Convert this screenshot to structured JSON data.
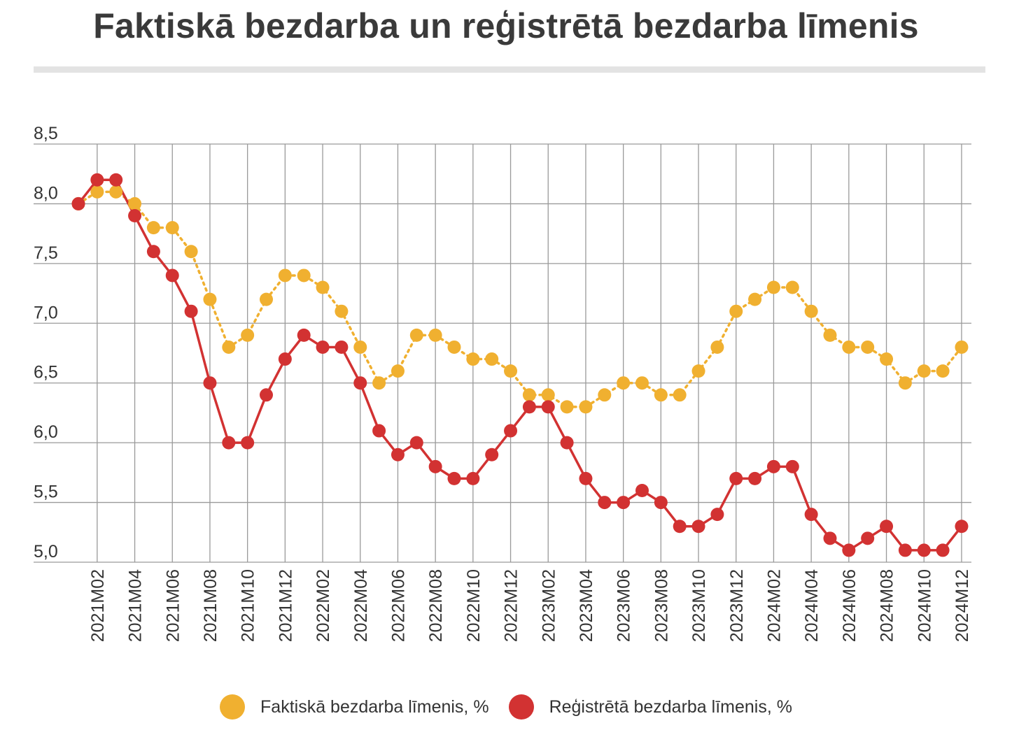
{
  "title": "Faktiskā bezdarba un reģistrētā bezdarba līmenis",
  "chart_data": {
    "type": "line",
    "ylim": [
      5.0,
      8.5
    ],
    "yticks": [
      "5,0",
      "5,5",
      "6,0",
      "6,5",
      "7,0",
      "7,5",
      "8,0",
      "8,5"
    ],
    "ytick_values": [
      5.0,
      5.5,
      6.0,
      6.5,
      7.0,
      7.5,
      8.0,
      8.5
    ],
    "x": [
      "2021M01",
      "2021M02",
      "2021M03",
      "2021M04",
      "2021M05",
      "2021M06",
      "2021M07",
      "2021M08",
      "2021M09",
      "2021M10",
      "2021M11",
      "2021M12",
      "2022M01",
      "2022M02",
      "2022M03",
      "2022M04",
      "2022M05",
      "2022M06",
      "2022M07",
      "2022M08",
      "2022M09",
      "2022M10",
      "2022M11",
      "2022M12",
      "2023M01",
      "2023M02",
      "2023M03",
      "2023M04",
      "2023M05",
      "2023M06",
      "2023M07",
      "2023M08",
      "2023M09",
      "2023M10",
      "2023M11",
      "2023M12",
      "2024M01",
      "2024M02",
      "2024M03",
      "2024M04",
      "2024M05",
      "2024M06",
      "2024M07",
      "2024M08",
      "2024M09",
      "2024M10",
      "2024M11",
      "2024M12"
    ],
    "xtick_labels": [
      "2021M02",
      "2021M04",
      "2021M06",
      "2021M08",
      "2021M10",
      "2021M12",
      "2022M02",
      "2022M04",
      "2022M06",
      "2022M08",
      "2022M10",
      "2022M12",
      "2023M02",
      "2023M04",
      "2023M06",
      "2023M08",
      "2023M10",
      "2023M12",
      "2024M02",
      "2024M04",
      "2024M06",
      "2024M08",
      "2024M10",
      "2024M12"
    ],
    "grid": true,
    "legend_position": "bottom",
    "series": [
      {
        "name": "Faktiskā bezdarba līmenis, %",
        "color": "#f0b030",
        "values": [
          8.0,
          8.1,
          8.1,
          8.0,
          7.8,
          7.8,
          7.6,
          7.2,
          6.8,
          6.9,
          7.2,
          7.4,
          7.4,
          7.3,
          7.1,
          6.8,
          6.5,
          6.6,
          6.9,
          6.9,
          6.8,
          6.7,
          6.7,
          6.6,
          6.4,
          6.4,
          6.3,
          6.3,
          6.4,
          6.5,
          6.5,
          6.4,
          6.4,
          6.6,
          6.8,
          7.1,
          7.2,
          7.3,
          7.3,
          7.1,
          6.9,
          6.8,
          6.8,
          6.7,
          6.5,
          6.6,
          6.6,
          6.8
        ]
      },
      {
        "name": "Reģistrētā bezdarba līmenis, %",
        "color": "#d23232",
        "values": [
          8.0,
          8.2,
          8.2,
          7.9,
          7.6,
          7.4,
          7.1,
          6.5,
          6.0,
          6.0,
          6.4,
          6.7,
          6.9,
          6.8,
          6.8,
          6.5,
          6.1,
          5.9,
          6.0,
          5.8,
          5.7,
          5.7,
          5.9,
          6.1,
          6.3,
          6.3,
          6.0,
          5.7,
          5.5,
          5.5,
          5.6,
          5.5,
          5.3,
          5.3,
          5.4,
          5.7,
          5.7,
          5.8,
          5.8,
          5.4,
          5.2,
          5.1,
          5.2,
          5.3,
          5.1,
          5.1,
          5.1,
          5.3
        ]
      }
    ]
  }
}
